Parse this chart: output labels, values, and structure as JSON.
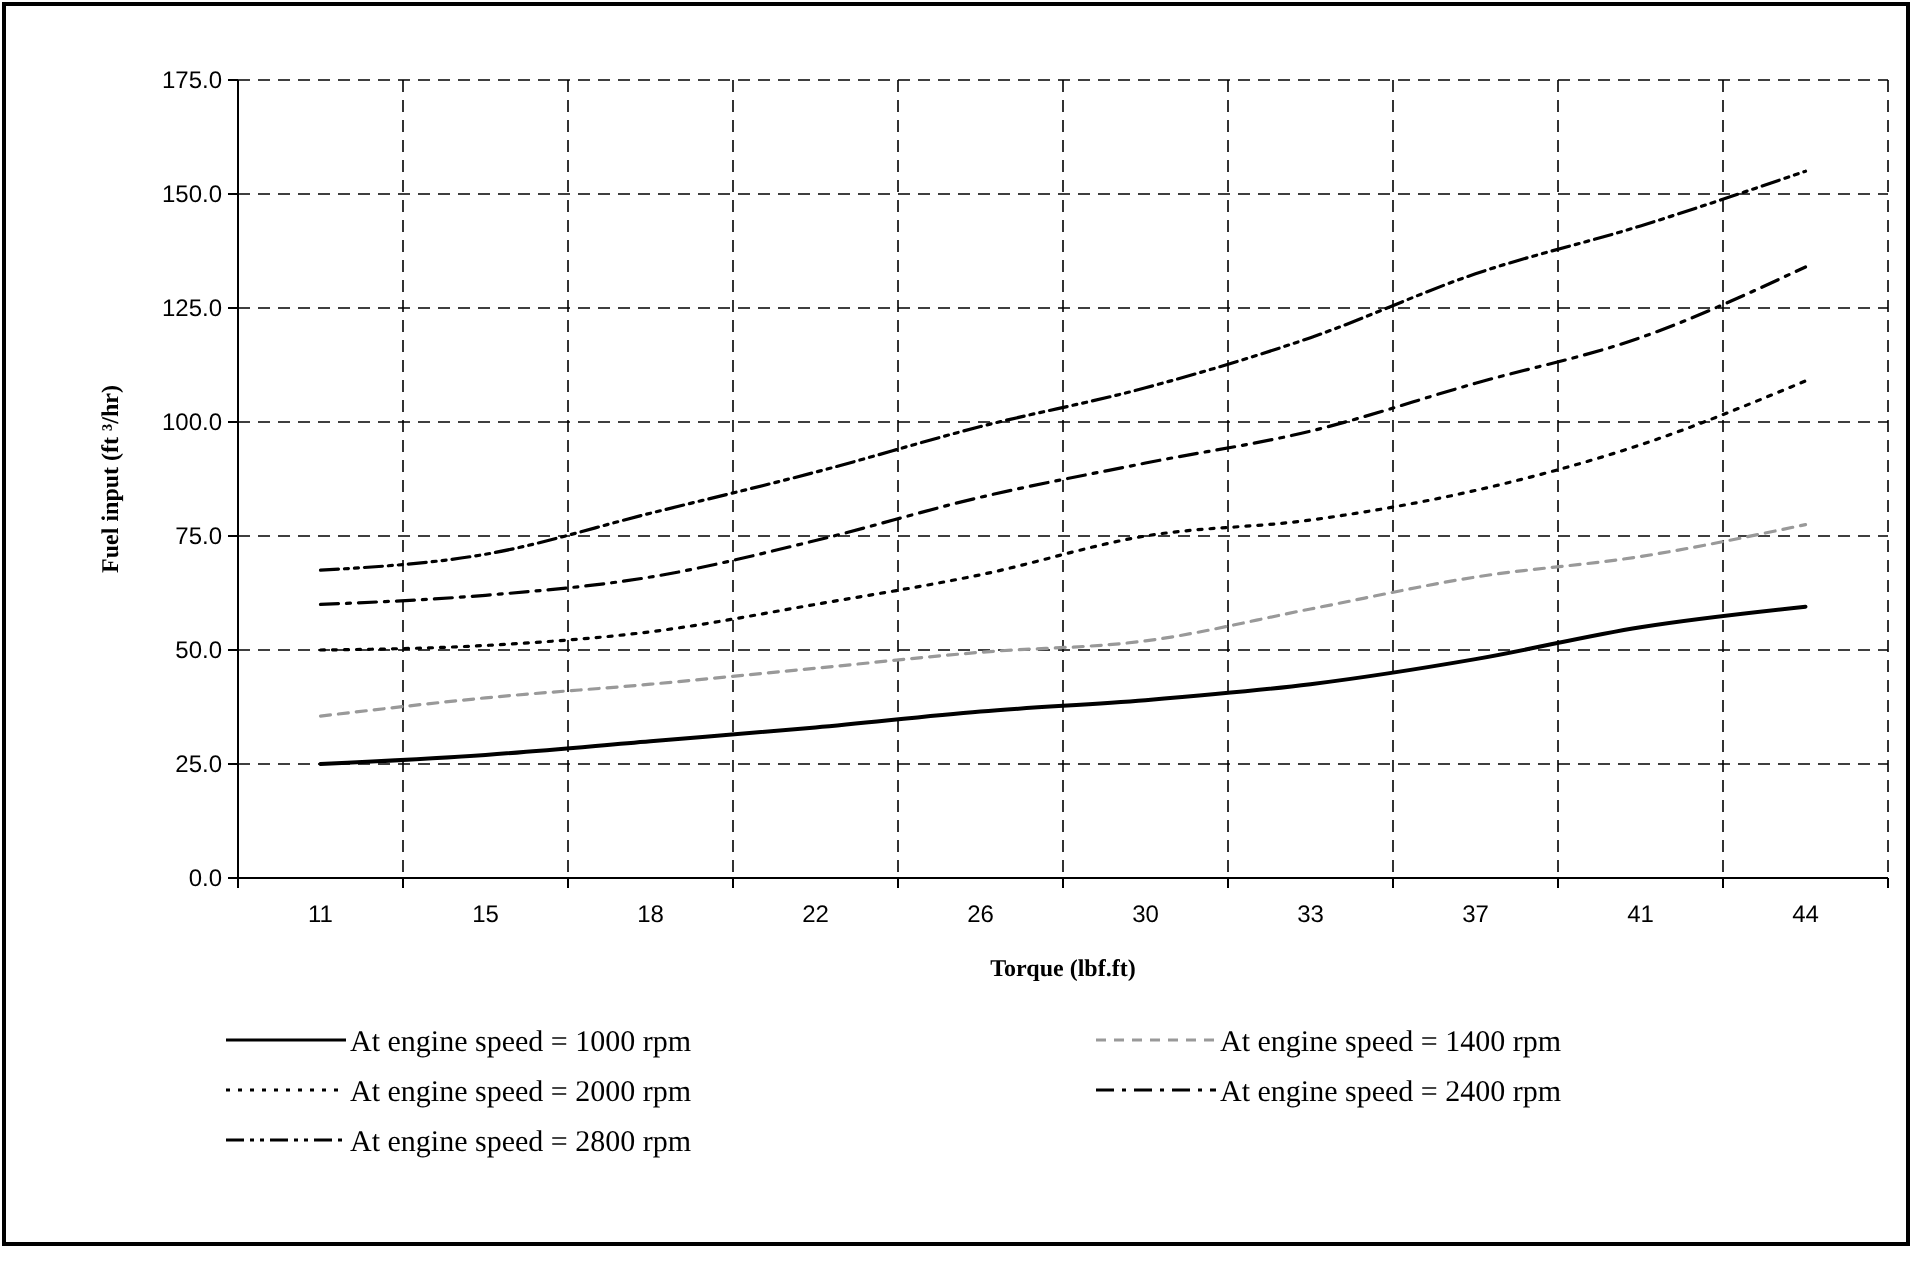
{
  "chart_data": {
    "type": "line",
    "xlabel": "Torque (lbf.ft)",
    "ylabel": "Fuel input (ft ³/hr)",
    "categories": [
      "11",
      "15",
      "18",
      "22",
      "26",
      "30",
      "33",
      "37",
      "41",
      "44"
    ],
    "series": [
      {
        "name": "At engine speed = 1000 rpm",
        "color": "#000000",
        "line_style": "solid",
        "values": [
          25,
          27,
          30,
          33,
          36.5,
          39,
          42.5,
          48,
          55,
          59.5
        ]
      },
      {
        "name": "At engine speed = 1400 rpm",
        "color": "#999999",
        "line_style": "dashed",
        "values": [
          35.5,
          39.5,
          42.5,
          46,
          49.5,
          52,
          59,
          66,
          70.5,
          77.5
        ]
      },
      {
        "name": "At engine speed = 2000 rpm",
        "color": "#000000",
        "line_style": "dotted",
        "values": [
          50,
          51,
          54,
          60,
          66.5,
          75,
          78.5,
          85,
          95,
          109
        ]
      },
      {
        "name": "At engine speed = 2400 rpm",
        "color": "#000000",
        "line_style": "dashdot",
        "values": [
          60,
          62,
          66,
          74,
          83.5,
          91,
          98,
          108.5,
          118.5,
          134
        ]
      },
      {
        "name": "At engine speed = 2800 rpm",
        "color": "#000000",
        "line_style": "dashdotdot",
        "values": [
          67.5,
          71,
          80,
          89,
          99,
          107.5,
          118.5,
          132.5,
          143,
          155
        ]
      }
    ],
    "ylim": [
      0,
      175
    ],
    "yticks": [
      {
        "value": 0,
        "label": "0.0"
      },
      {
        "value": 25,
        "label": "25.0"
      },
      {
        "value": 50,
        "label": "50.0"
      },
      {
        "value": 75,
        "label": "75.0"
      },
      {
        "value": 100,
        "label": "100.0"
      },
      {
        "value": 125,
        "label": "125.0"
      },
      {
        "value": 150,
        "label": "150.0"
      },
      {
        "value": 175,
        "label": "175.0"
      }
    ],
    "grid": true,
    "legend": "bottom"
  }
}
